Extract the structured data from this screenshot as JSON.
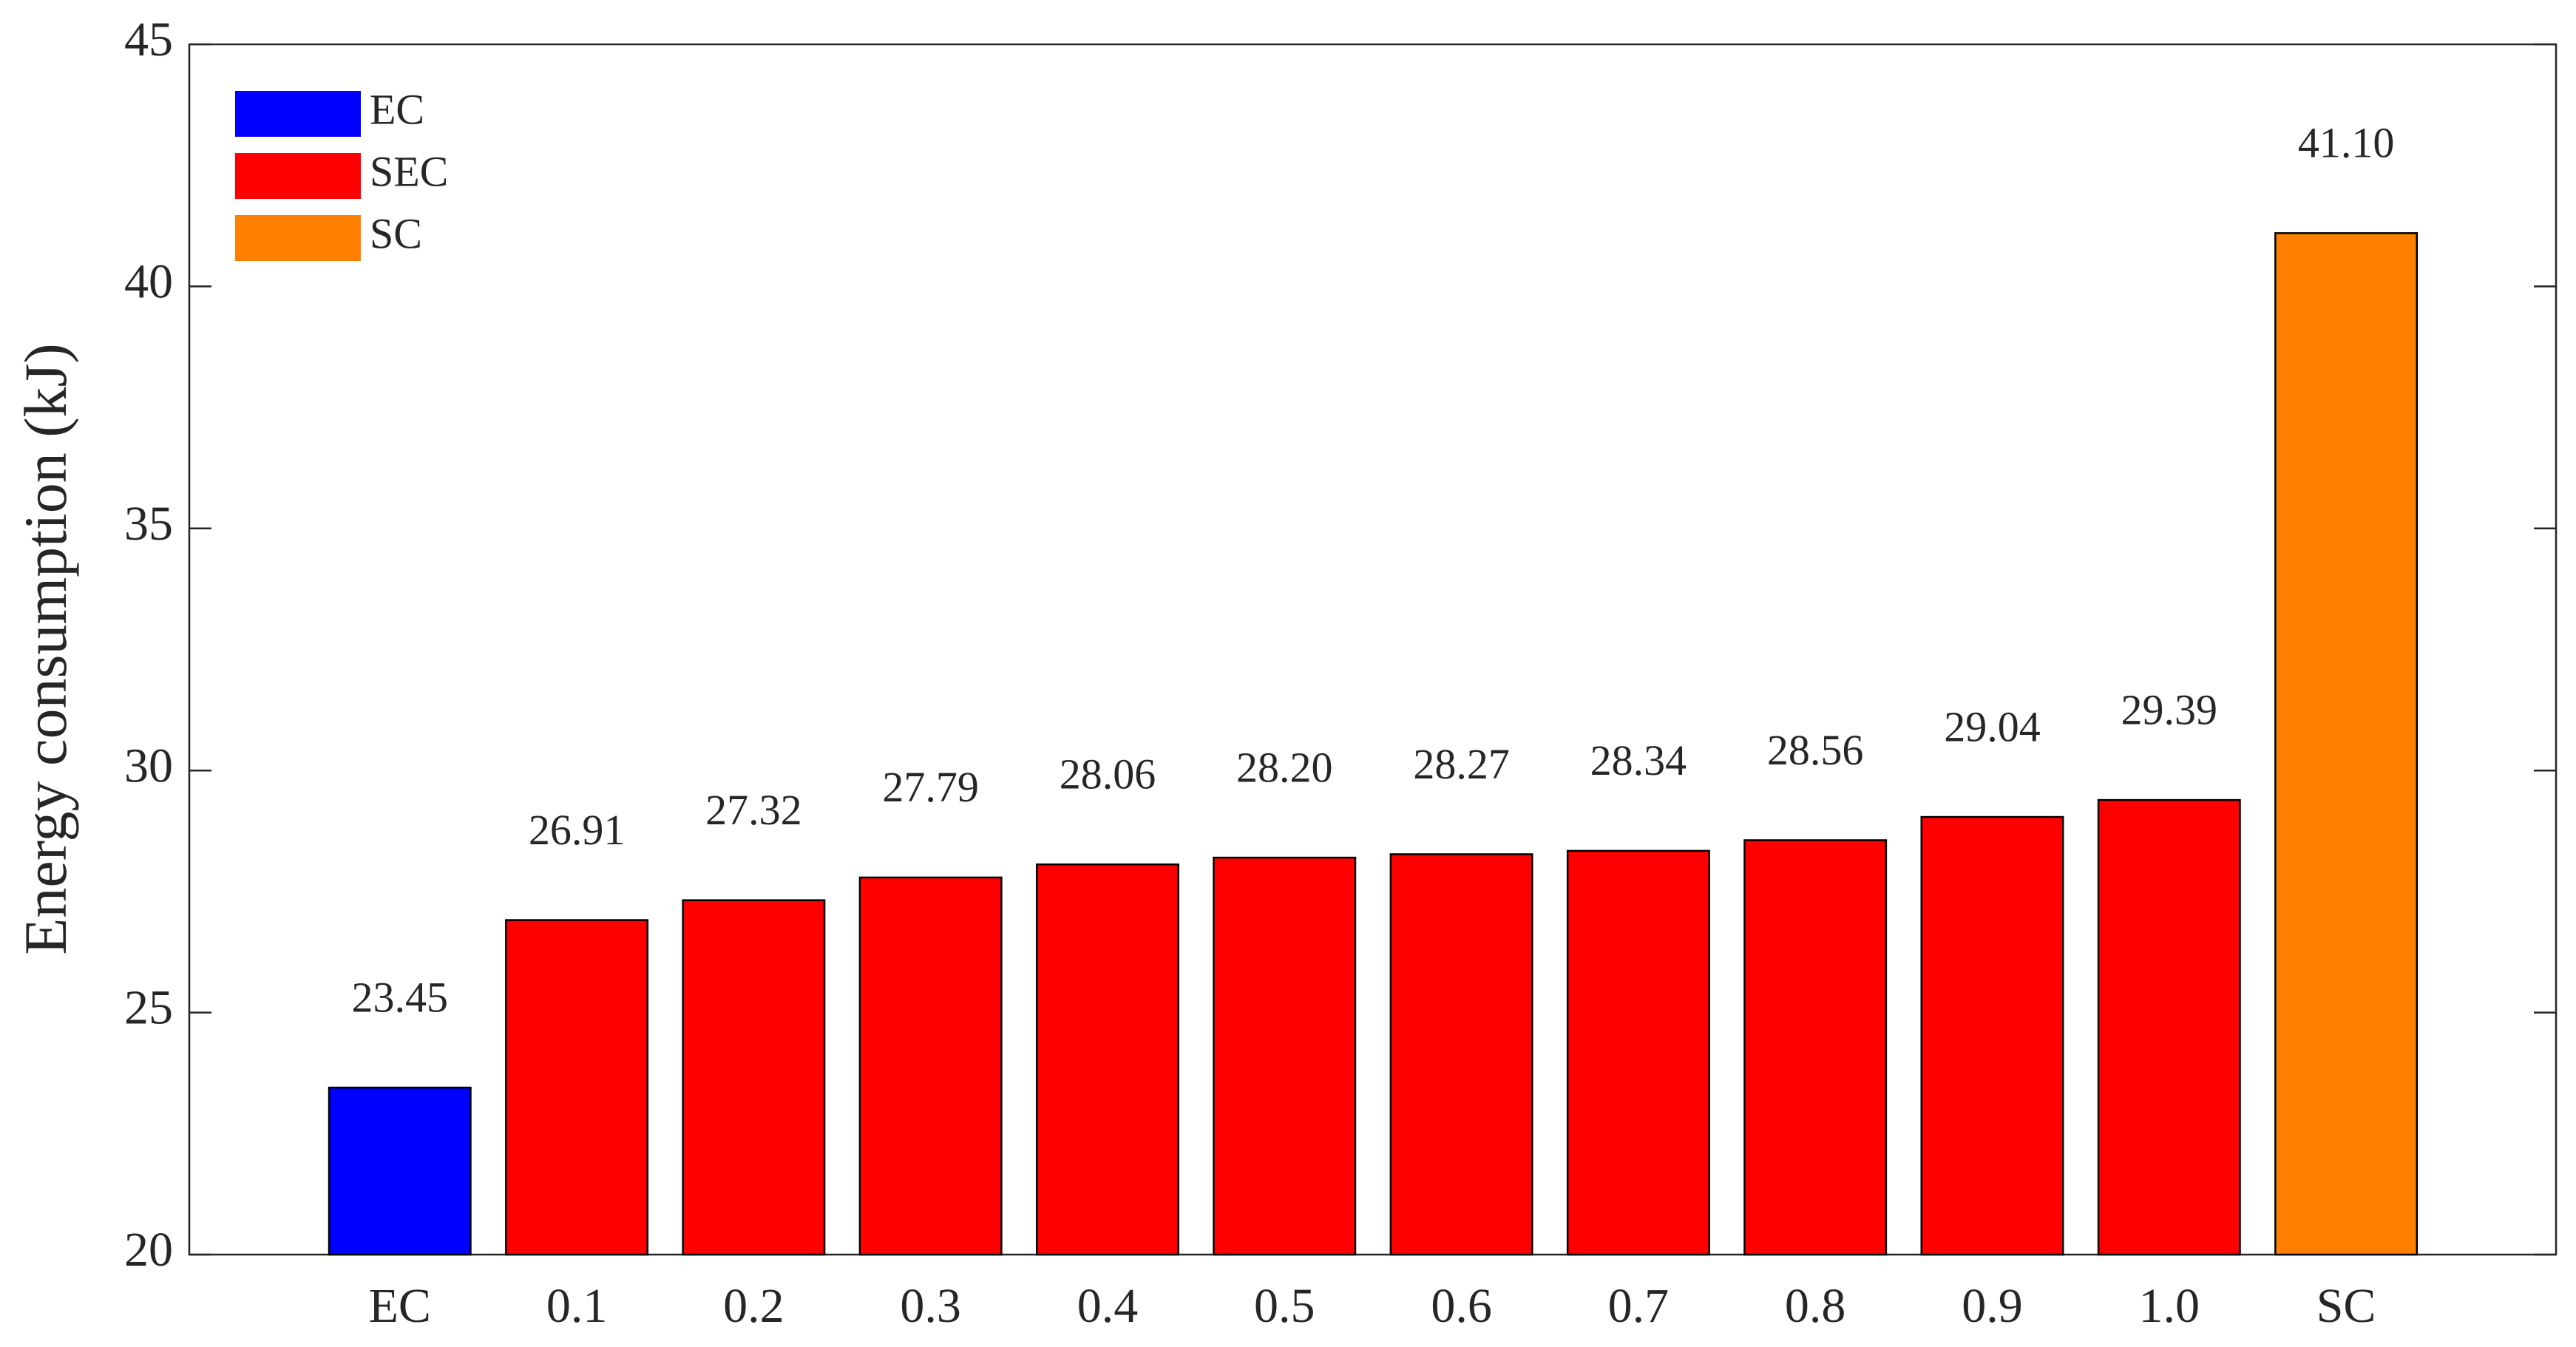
{
  "chart_data": {
    "type": "bar",
    "y_label": "Energy consumption (kJ)",
    "categories": [
      "EC",
      "0.1",
      "0.2",
      "0.3",
      "0.4",
      "0.5",
      "0.6",
      "0.7",
      "0.8",
      "0.9",
      "1.0",
      "SC"
    ],
    "series": [
      {
        "name": "EC",
        "color": "#0000ff",
        "values": [
          23.45,
          null,
          null,
          null,
          null,
          null,
          null,
          null,
          null,
          null,
          null,
          null
        ]
      },
      {
        "name": "SEC",
        "color": "#ff0000",
        "values": [
          null,
          26.91,
          27.32,
          27.79,
          28.06,
          28.2,
          28.27,
          28.34,
          28.56,
          29.04,
          29.39,
          null
        ],
        "value_labels": [
          null,
          "26.91",
          "27.32",
          "27.79",
          "28.06",
          "28.20",
          "28.27",
          "28.34",
          "28.56",
          "29.04",
          "29.39",
          null
        ]
      },
      {
        "name": "SC",
        "color": "#ff8000",
        "values": [
          null,
          null,
          null,
          null,
          null,
          null,
          null,
          null,
          null,
          null,
          null,
          41.1
        ],
        "value_labels": [
          null,
          null,
          null,
          null,
          null,
          null,
          null,
          null,
          null,
          null,
          null,
          "41.10"
        ]
      }
    ],
    "ylim": [
      20,
      45
    ],
    "yticks": [
      20,
      25,
      30,
      35,
      40,
      45
    ],
    "grid": false,
    "legend": "upper-left"
  }
}
